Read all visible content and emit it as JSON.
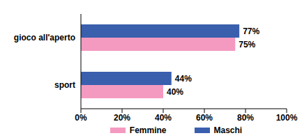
{
  "chart_data": {
    "type": "bar",
    "orientation": "horizontal",
    "categories": [
      "gioco all'aperto",
      "sport"
    ],
    "series": [
      {
        "name": "Femmine",
        "color": "#f49ac1",
        "values": [
          75,
          40
        ],
        "value_labels": [
          "75%",
          "40%"
        ]
      },
      {
        "name": "Maschi",
        "color": "#3a5fad",
        "values": [
          77,
          44
        ],
        "value_labels": [
          "77%",
          "44%"
        ]
      }
    ],
    "xlim": [
      0,
      100
    ],
    "xticks": [
      {
        "value": 0,
        "label": "0%"
      },
      {
        "value": 20,
        "label": "20%"
      },
      {
        "value": 40,
        "label": "40%"
      },
      {
        "value": 60,
        "label": "60%"
      },
      {
        "value": 80,
        "label": "80%"
      },
      {
        "value": 100,
        "label": "100%"
      }
    ],
    "grid": false,
    "legend": "bottom",
    "data_labels": true
  }
}
